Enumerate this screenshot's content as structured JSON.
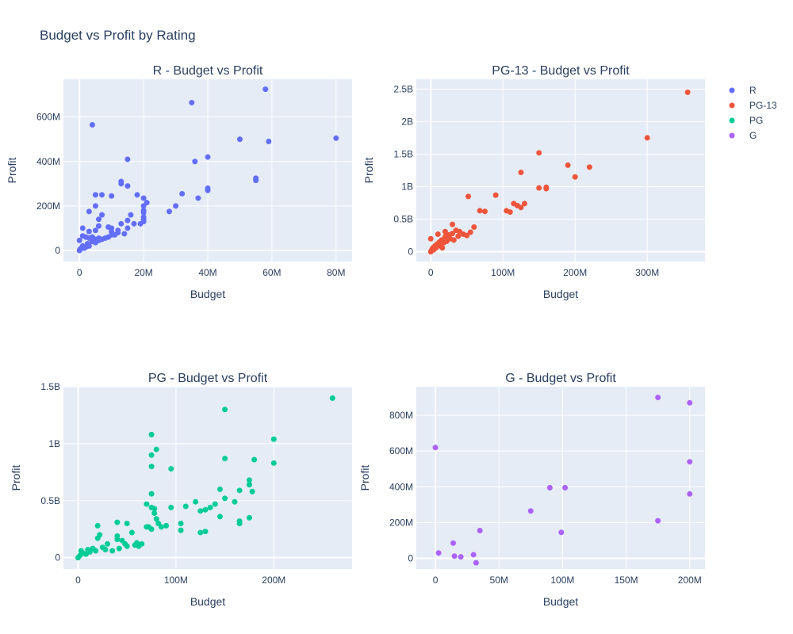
{
  "title": "Budget vs Profit by Rating",
  "colors": {
    "R": "#636efa",
    "PG-13": "#ef553b",
    "PG": "#00cc96",
    "G": "#ab63fa",
    "plot_bg": "#e5ecf6",
    "grid": "#ffffff"
  },
  "legend": {
    "placement": "top-right",
    "items": [
      "R",
      "PG-13",
      "PG",
      "G"
    ]
  },
  "chart_data": [
    {
      "type": "scatter",
      "series_name": "R",
      "title": "R - Budget vs Profit",
      "xlabel": "Budget",
      "ylabel": "Profit",
      "xlim": [
        -5000000,
        85000000
      ],
      "ylim": [
        -50000000,
        770000000
      ],
      "xticks": [
        0,
        20000000,
        40000000,
        60000000,
        80000000
      ],
      "xtick_labels": [
        "0",
        "20M",
        "40M",
        "60M",
        "80M"
      ],
      "yticks": [
        0,
        200000000,
        400000000,
        600000000
      ],
      "ytick_labels": [
        "0",
        "200M",
        "400M",
        "600M"
      ],
      "points": [
        [
          0,
          0
        ],
        [
          200000,
          5000000
        ],
        [
          500000,
          10000000
        ],
        [
          800000,
          15000000
        ],
        [
          1000000,
          20000000
        ],
        [
          1500000,
          10000000
        ],
        [
          2000000,
          15000000
        ],
        [
          3000000,
          20000000
        ],
        [
          2500000,
          30000000
        ],
        [
          1000000,
          100000000
        ],
        [
          0,
          45000000
        ],
        [
          1000000,
          65000000
        ],
        [
          2000000,
          60000000
        ],
        [
          3000000,
          55000000
        ],
        [
          3000000,
          85000000
        ],
        [
          4000000,
          60000000
        ],
        [
          4000000,
          40000000
        ],
        [
          5000000,
          50000000
        ],
        [
          5000000,
          35000000
        ],
        [
          6000000,
          45000000
        ],
        [
          6000000,
          55000000
        ],
        [
          5000000,
          90000000
        ],
        [
          7000000,
          50000000
        ],
        [
          8000000,
          55000000
        ],
        [
          9000000,
          60000000
        ],
        [
          3000000,
          175000000
        ],
        [
          4000000,
          565000000
        ],
        [
          5000000,
          250000000
        ],
        [
          5000000,
          200000000
        ],
        [
          6000000,
          140000000
        ],
        [
          6000000,
          110000000
        ],
        [
          7000000,
          250000000
        ],
        [
          7000000,
          160000000
        ],
        [
          9000000,
          105000000
        ],
        [
          10000000,
          100000000
        ],
        [
          10000000,
          245000000
        ],
        [
          10000000,
          85000000
        ],
        [
          10000000,
          70000000
        ],
        [
          11000000,
          70000000
        ],
        [
          12000000,
          80000000
        ],
        [
          12000000,
          90000000
        ],
        [
          13000000,
          310000000
        ],
        [
          13000000,
          300000000
        ],
        [
          13000000,
          120000000
        ],
        [
          14000000,
          75000000
        ],
        [
          15000000,
          100000000
        ],
        [
          15000000,
          410000000
        ],
        [
          15000000,
          290000000
        ],
        [
          15000000,
          135000000
        ],
        [
          16000000,
          160000000
        ],
        [
          17000000,
          120000000
        ],
        [
          18000000,
          250000000
        ],
        [
          19000000,
          120000000
        ],
        [
          20000000,
          235000000
        ],
        [
          20000000,
          200000000
        ],
        [
          20000000,
          180000000
        ],
        [
          20000000,
          170000000
        ],
        [
          20000000,
          150000000
        ],
        [
          20000000,
          140000000
        ],
        [
          20000000,
          130000000
        ],
        [
          21000000,
          215000000
        ],
        [
          28000000,
          175000000
        ],
        [
          30000000,
          200000000
        ],
        [
          32000000,
          255000000
        ],
        [
          35000000,
          665000000
        ],
        [
          36000000,
          400000000
        ],
        [
          37000000,
          235000000
        ],
        [
          40000000,
          420000000
        ],
        [
          40000000,
          280000000
        ],
        [
          40000000,
          270000000
        ],
        [
          50000000,
          500000000
        ],
        [
          55000000,
          325000000
        ],
        [
          55000000,
          315000000
        ],
        [
          58000000,
          725000000
        ],
        [
          59000000,
          490000000
        ],
        [
          80000000,
          505000000
        ]
      ]
    },
    {
      "type": "scatter",
      "series_name": "PG-13",
      "title": "PG-13 - Budget vs Profit",
      "xlabel": "Budget",
      "ylabel": "Profit",
      "xlim": [
        -20000000,
        380000000
      ],
      "ylim": [
        -150000000,
        2650000000
      ],
      "xticks": [
        0,
        100000000,
        200000000,
        300000000
      ],
      "xtick_labels": [
        "0",
        "100M",
        "200M",
        "300M"
      ],
      "yticks": [
        0,
        500000000,
        1000000000,
        1500000000,
        2000000000,
        2500000000
      ],
      "ytick_labels": [
        "0",
        "0.5B",
        "1B",
        "1.5B",
        "2B",
        "2.5B"
      ],
      "points": [
        [
          0,
          0
        ],
        [
          1000000,
          20000000
        ],
        [
          2000000,
          40000000
        ],
        [
          3000000,
          60000000
        ],
        [
          4000000,
          30000000
        ],
        [
          5000000,
          80000000
        ],
        [
          6000000,
          50000000
        ],
        [
          7000000,
          100000000
        ],
        [
          8000000,
          70000000
        ],
        [
          9000000,
          120000000
        ],
        [
          10000000,
          90000000
        ],
        [
          12000000,
          150000000
        ],
        [
          14000000,
          110000000
        ],
        [
          15000000,
          180000000
        ],
        [
          16000000,
          60000000
        ],
        [
          18000000,
          140000000
        ],
        [
          20000000,
          230000000
        ],
        [
          22000000,
          160000000
        ],
        [
          25000000,
          260000000
        ],
        [
          27000000,
          200000000
        ],
        [
          30000000,
          280000000
        ],
        [
          32000000,
          180000000
        ],
        [
          35000000,
          330000000
        ],
        [
          38000000,
          240000000
        ],
        [
          40000000,
          310000000
        ],
        [
          45000000,
          270000000
        ],
        [
          50000000,
          250000000
        ],
        [
          55000000,
          300000000
        ],
        [
          60000000,
          380000000
        ],
        [
          0,
          200000000
        ],
        [
          10000000,
          270000000
        ],
        [
          20000000,
          310000000
        ],
        [
          30000000,
          420000000
        ],
        [
          52000000,
          850000000
        ],
        [
          68000000,
          630000000
        ],
        [
          75000000,
          620000000
        ],
        [
          90000000,
          870000000
        ],
        [
          105000000,
          630000000
        ],
        [
          110000000,
          610000000
        ],
        [
          115000000,
          740000000
        ],
        [
          120000000,
          710000000
        ],
        [
          125000000,
          680000000
        ],
        [
          125000000,
          1220000000
        ],
        [
          130000000,
          740000000
        ],
        [
          150000000,
          980000000
        ],
        [
          150000000,
          1520000000
        ],
        [
          160000000,
          990000000
        ],
        [
          160000000,
          970000000
        ],
        [
          190000000,
          1330000000
        ],
        [
          200000000,
          1150000000
        ],
        [
          220000000,
          1300000000
        ],
        [
          300000000,
          1750000000
        ],
        [
          356000000,
          2450000000
        ]
      ]
    },
    {
      "type": "scatter",
      "series_name": "PG",
      "title": "PG - Budget vs Profit",
      "xlabel": "Budget",
      "ylabel": "Profit",
      "xlim": [
        -15000000,
        280000000
      ],
      "ylim": [
        -100000000,
        1500000000
      ],
      "xticks": [
        0,
        100000000,
        200000000
      ],
      "xtick_labels": [
        "0",
        "100M",
        "200M"
      ],
      "yticks": [
        0,
        500000000,
        1000000000,
        1500000000
      ],
      "ytick_labels": [
        "0",
        "0.5B",
        "1B",
        "1.5B"
      ],
      "points": [
        [
          0,
          0
        ],
        [
          2000000,
          20000000
        ],
        [
          3000000,
          60000000
        ],
        [
          5000000,
          40000000
        ],
        [
          8000000,
          30000000
        ],
        [
          10000000,
          70000000
        ],
        [
          12000000,
          50000000
        ],
        [
          15000000,
          80000000
        ],
        [
          18000000,
          60000000
        ],
        [
          20000000,
          280000000
        ],
        [
          20000000,
          170000000
        ],
        [
          22000000,
          200000000
        ],
        [
          25000000,
          90000000
        ],
        [
          28000000,
          70000000
        ],
        [
          30000000,
          120000000
        ],
        [
          35000000,
          60000000
        ],
        [
          40000000,
          310000000
        ],
        [
          40000000,
          190000000
        ],
        [
          40000000,
          160000000
        ],
        [
          42000000,
          80000000
        ],
        [
          45000000,
          150000000
        ],
        [
          48000000,
          120000000
        ],
        [
          50000000,
          300000000
        ],
        [
          50000000,
          100000000
        ],
        [
          55000000,
          220000000
        ],
        [
          58000000,
          110000000
        ],
        [
          60000000,
          130000000
        ],
        [
          62000000,
          100000000
        ],
        [
          65000000,
          120000000
        ],
        [
          70000000,
          470000000
        ],
        [
          70000000,
          270000000
        ],
        [
          72000000,
          270000000
        ],
        [
          75000000,
          1080000000
        ],
        [
          75000000,
          900000000
        ],
        [
          75000000,
          800000000
        ],
        [
          75000000,
          560000000
        ],
        [
          75000000,
          440000000
        ],
        [
          75000000,
          250000000
        ],
        [
          78000000,
          430000000
        ],
        [
          78000000,
          390000000
        ],
        [
          80000000,
          950000000
        ],
        [
          80000000,
          340000000
        ],
        [
          82000000,
          300000000
        ],
        [
          85000000,
          270000000
        ],
        [
          90000000,
          280000000
        ],
        [
          95000000,
          780000000
        ],
        [
          95000000,
          440000000
        ],
        [
          105000000,
          300000000
        ],
        [
          105000000,
          240000000
        ],
        [
          110000000,
          450000000
        ],
        [
          120000000,
          490000000
        ],
        [
          125000000,
          410000000
        ],
        [
          125000000,
          220000000
        ],
        [
          130000000,
          420000000
        ],
        [
          130000000,
          230000000
        ],
        [
          135000000,
          440000000
        ],
        [
          140000000,
          470000000
        ],
        [
          145000000,
          600000000
        ],
        [
          145000000,
          360000000
        ],
        [
          150000000,
          1300000000
        ],
        [
          150000000,
          870000000
        ],
        [
          150000000,
          520000000
        ],
        [
          160000000,
          490000000
        ],
        [
          165000000,
          590000000
        ],
        [
          165000000,
          320000000
        ],
        [
          165000000,
          300000000
        ],
        [
          175000000,
          680000000
        ],
        [
          175000000,
          640000000
        ],
        [
          175000000,
          350000000
        ],
        [
          178000000,
          580000000
        ],
        [
          180000000,
          860000000
        ],
        [
          200000000,
          1040000000
        ],
        [
          200000000,
          830000000
        ],
        [
          260000000,
          1400000000
        ]
      ]
    },
    {
      "type": "scatter",
      "series_name": "G",
      "title": "G - Budget vs Profit",
      "xlabel": "Budget",
      "ylabel": "Profit",
      "xlim": [
        -15000000,
        212000000
      ],
      "ylim": [
        -60000000,
        960000000
      ],
      "xticks": [
        0,
        50000000,
        100000000,
        150000000,
        200000000
      ],
      "xtick_labels": [
        "0",
        "50M",
        "100M",
        "150M",
        "200M"
      ],
      "yticks": [
        0,
        200000000,
        400000000,
        600000000,
        800000000
      ],
      "ytick_labels": [
        "0",
        "200M",
        "400M",
        "600M",
        "800M"
      ],
      "points": [
        [
          0,
          620000000
        ],
        [
          2500000,
          30000000
        ],
        [
          14000000,
          85000000
        ],
        [
          15000000,
          12000000
        ],
        [
          20000000,
          8000000
        ],
        [
          30000000,
          20000000
        ],
        [
          32000000,
          -25000000
        ],
        [
          35000000,
          155000000
        ],
        [
          75000000,
          265000000
        ],
        [
          90000000,
          395000000
        ],
        [
          99000000,
          145000000
        ],
        [
          102000000,
          395000000
        ],
        [
          175000000,
          900000000
        ],
        [
          175000000,
          210000000
        ],
        [
          200000000,
          870000000
        ],
        [
          200000000,
          540000000
        ],
        [
          200000000,
          360000000
        ]
      ]
    }
  ]
}
